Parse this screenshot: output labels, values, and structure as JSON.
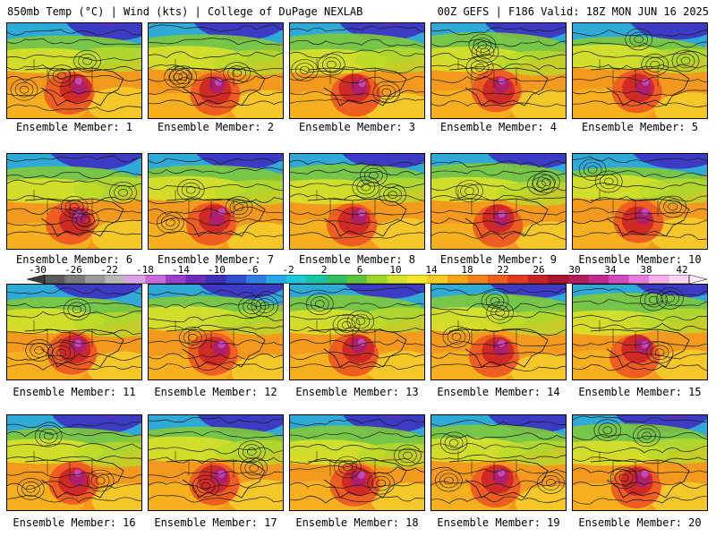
{
  "header": {
    "left": "850mb Temp (°C) | Wind (kts) | College of DuPage NEXLAB",
    "right": "00Z GEFS | F186 Valid: 18Z MON JUN 16 2025"
  },
  "panel_label_prefix": "Ensemble Member: ",
  "members": [
    1,
    2,
    3,
    4,
    5,
    6,
    7,
    8,
    9,
    10,
    11,
    12,
    13,
    14,
    15,
    16,
    17,
    18,
    19,
    20
  ],
  "colorbar": {
    "tick_labels": [
      "-30",
      "-26",
      "-22",
      "-18",
      "-14",
      "-10",
      "-6",
      "-2",
      "2",
      "6",
      "10",
      "14",
      "18",
      "22",
      "26",
      "30",
      "34",
      "38",
      "42"
    ],
    "colors": [
      "#5a5a5a",
      "#7a7a7a",
      "#9a9a9a",
      "#b8b8b8",
      "#d9a3e6",
      "#c86ad8",
      "#9a3fc9",
      "#6b2bbd",
      "#3c2fb8",
      "#2d4fd0",
      "#2f7ee6",
      "#29a8e8",
      "#1cc8d8",
      "#19c4a5",
      "#2fbe62",
      "#5ec53b",
      "#9bd52c",
      "#d7e12a",
      "#f5e52a",
      "#f8c91e",
      "#f6a519",
      "#f2821b",
      "#ee5d22",
      "#e03a24",
      "#c9232a",
      "#a8142e",
      "#b01d5a",
      "#c02a8e",
      "#d24bbd",
      "#e57ad8",
      "#f3b0ea",
      "#fad6f4"
    ]
  }
}
